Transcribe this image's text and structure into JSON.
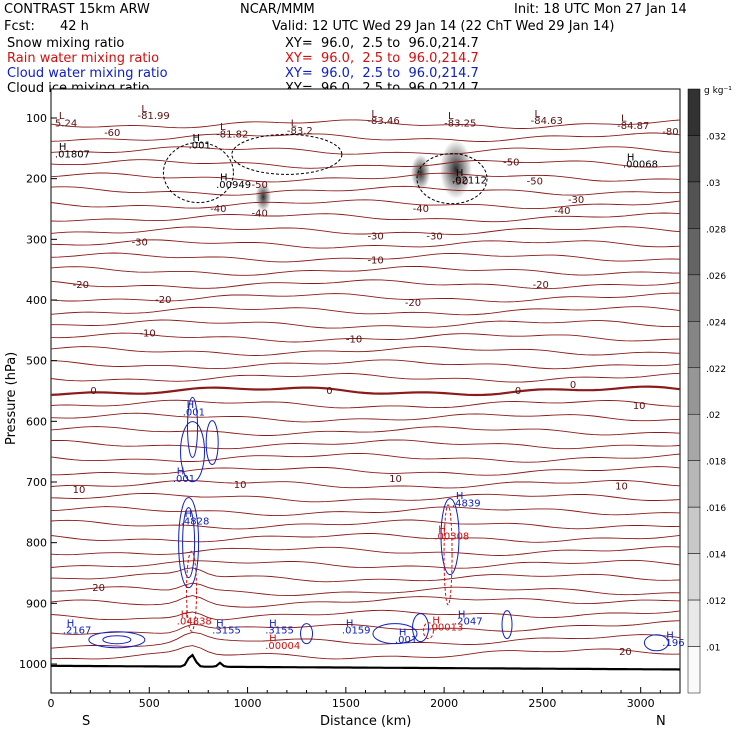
{
  "header": {
    "model": "CONTRAST 15km ARW",
    "center": "NCAR/MMM",
    "init": "Init: 18 UTC Mon 27 Jan 14",
    "fcst_label": "Fcst:",
    "fcst_value": "42 h",
    "valid": "Valid: 12 UTC Wed 29 Jan 14 (22 ChT Wed 29 Jan 14)"
  },
  "fields": [
    {
      "name": "Snow mixing ratio",
      "xy": "XY=  96.0,  2.5 to  96.0,214.7",
      "color": "#000000"
    },
    {
      "name": "Rain water mixing ratio",
      "xy": "XY=  96.0,  2.5 to  96.0,214.7",
      "color": "#d01010"
    },
    {
      "name": "Cloud water mixing ratio",
      "xy": "XY=  96.0,  2.5 to  96.0,214.7",
      "color": "#1020c0"
    },
    {
      "name": "Cloud ice mixing ratio",
      "xy": "XY=  96.0,  2.5 to  96.0,214.7",
      "color": "#000000"
    }
  ],
  "chart_data": {
    "type": "heatmap",
    "xlabel": "Distance (km)",
    "ylabel": "Pressure (hPa)",
    "xlim": [
      0,
      3200
    ],
    "ylim": [
      1050,
      50
    ],
    "x_ticks": [
      0,
      500,
      1000,
      1500,
      2000,
      2500,
      3000
    ],
    "y_ticks": [
      100,
      200,
      300,
      400,
      500,
      600,
      700,
      800,
      900,
      1000
    ],
    "x_end_labels": {
      "left": "S",
      "right": "N"
    },
    "colorbar": {
      "unit": "g kg⁻¹",
      "ticks": [
        ".01",
        ".012",
        ".014",
        ".016",
        ".018",
        ".02",
        ".022",
        ".024",
        ".026",
        ".028",
        ".03",
        ".032"
      ],
      "min": 0.009,
      "max": 0.034
    },
    "temperature_contours": {
      "color": "#8b1a1a",
      "labels": [
        {
          "x": 1400,
          "p": 555,
          "text": "0"
        },
        {
          "x": 2640,
          "p": 545,
          "text": "0"
        },
        {
          "x": 200,
          "p": 555,
          "text": "0"
        },
        {
          "x": 2360,
          "p": 555,
          "text": "0"
        },
        {
          "x": 110,
          "p": 718,
          "text": "10"
        },
        {
          "x": 2870,
          "p": 712,
          "text": "10"
        },
        {
          "x": 930,
          "p": 710,
          "text": "10"
        },
        {
          "x": 1720,
          "p": 700,
          "text": "10"
        },
        {
          "x": 1500,
          "p": 470,
          "text": "-10"
        },
        {
          "x": 450,
          "p": 460,
          "text": "-10"
        },
        {
          "x": 1610,
          "p": 340,
          "text": "-10"
        },
        {
          "x": 2960,
          "p": 580,
          "text": "10"
        },
        {
          "x": 210,
          "p": 880,
          "text": "20"
        },
        {
          "x": 2890,
          "p": 985,
          "text": "20"
        },
        {
          "x": 530,
          "p": 405,
          "text": "-20"
        },
        {
          "x": 1800,
          "p": 410,
          "text": "-20"
        },
        {
          "x": 110,
          "p": 380,
          "text": "-20"
        },
        {
          "x": 2450,
          "p": 380,
          "text": "-20"
        },
        {
          "x": 410,
          "p": 310,
          "text": "-30"
        },
        {
          "x": 1610,
          "p": 300,
          "text": "-30"
        },
        {
          "x": 1910,
          "p": 300,
          "text": "-30"
        },
        {
          "x": 2630,
          "p": 240,
          "text": "-30"
        },
        {
          "x": 810,
          "p": 255,
          "text": "-40"
        },
        {
          "x": 1020,
          "p": 262,
          "text": "-40"
        },
        {
          "x": 1840,
          "p": 255,
          "text": "-40"
        },
        {
          "x": 2560,
          "p": 258,
          "text": "-40"
        },
        {
          "x": 1020,
          "p": 215,
          "text": "-50"
        },
        {
          "x": 2040,
          "p": 210,
          "text": "-50"
        },
        {
          "x": 2420,
          "p": 210,
          "text": "-50"
        },
        {
          "x": 2300,
          "p": 178,
          "text": "-50"
        },
        {
          "x": 270,
          "p": 130,
          "text": "-60"
        },
        {
          "x": 3110,
          "p": 128,
          "text": "-80"
        }
      ],
      "lows": [
        {
          "x": 440,
          "p": 100,
          "text": "-81.99"
        },
        {
          "x": 840,
          "p": 130,
          "text": "-81.82"
        },
        {
          "x": 1200,
          "p": 124,
          "text": "-83.2"
        },
        {
          "x": 1610,
          "p": 108,
          "text": "-83.46"
        },
        {
          "x": 2000,
          "p": 112,
          "text": "-83.25"
        },
        {
          "x": 2440,
          "p": 108,
          "text": "-84.63"
        },
        {
          "x": 2880,
          "p": 116,
          "text": "-84.87"
        },
        {
          "x": 20,
          "p": 112,
          "text": "5.24"
        }
      ]
    },
    "snow_max": [
      {
        "x": 20,
        "p": 165,
        "text": ".01807"
      },
      {
        "x": 840,
        "p": 215,
        "text": ".00949"
      },
      {
        "x": 2040,
        "p": 208,
        "text": ".02112"
      },
      {
        "x": 2910,
        "p": 182,
        "text": ".00068"
      },
      {
        "x": 700,
        "p": 150,
        "text": ".001"
      }
    ],
    "cloud_water_max": [
      {
        "x": 60,
        "p": 950,
        "text": ".2167"
      },
      {
        "x": 660,
        "p": 770,
        "text": ".4828"
      },
      {
        "x": 2040,
        "p": 740,
        "text": ".4839"
      },
      {
        "x": 820,
        "p": 950,
        "text": ".3155"
      },
      {
        "x": 1090,
        "p": 950,
        "text": ".3155"
      },
      {
        "x": 1480,
        "p": 950,
        "text": ".0159"
      },
      {
        "x": 2050,
        "p": 935,
        "text": ".2047"
      },
      {
        "x": 3110,
        "p": 970,
        "text": ".196"
      },
      {
        "x": 670,
        "p": 590,
        "text": ".001"
      },
      {
        "x": 620,
        "p": 700,
        "text": ".001"
      },
      {
        "x": 1750,
        "p": 965,
        "text": ".001"
      }
    ],
    "rain_max": [
      {
        "x": 640,
        "p": 935,
        "text": ".04838"
      },
      {
        "x": 1090,
        "p": 975,
        "text": ".00004"
      },
      {
        "x": 1920,
        "p": 945,
        "text": ".00013"
      },
      {
        "x": 1950,
        "p": 795,
        "text": ".00308"
      }
    ],
    "snow_shading": [
      {
        "x": 2060,
        "p": 185,
        "value": 0.032
      },
      {
        "x": 1880,
        "p": 190,
        "value": 0.018
      },
      {
        "x": 1080,
        "p": 230,
        "value": 0.014
      }
    ]
  }
}
